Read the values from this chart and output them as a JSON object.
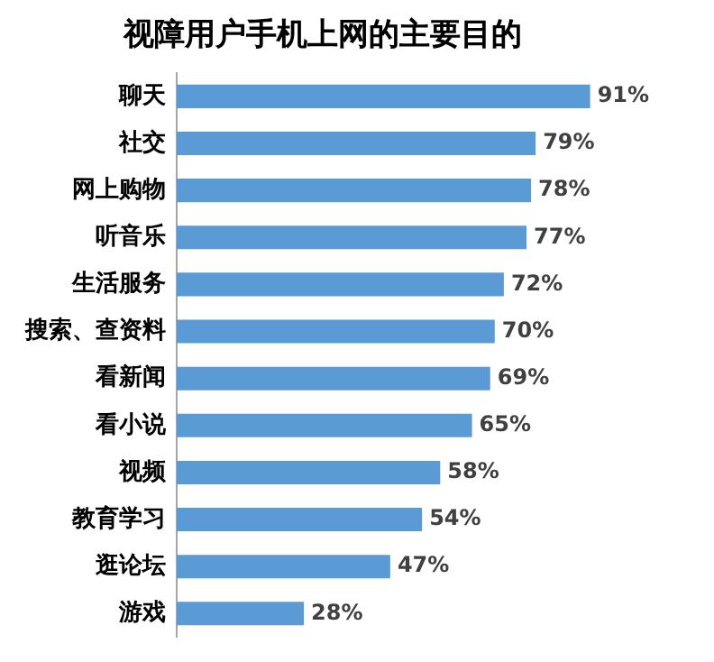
{
  "chart_data": {
    "type": "bar",
    "orientation": "horizontal",
    "title": "视障用户手机上网的主要目的",
    "categories": [
      "聊天",
      "社交",
      "网上购物",
      "听音乐",
      "生活服务",
      "搜索、查资料",
      "看新闻",
      "看小说",
      "视频",
      "教育学习",
      "逛论坛",
      "游戏"
    ],
    "values": [
      91,
      79,
      78,
      77,
      72,
      70,
      69,
      65,
      58,
      54,
      47,
      28
    ],
    "value_labels": [
      "91%",
      "79%",
      "78%",
      "77%",
      "72%",
      "70%",
      "69%",
      "65%",
      "58%",
      "54%",
      "47%",
      "28%"
    ],
    "color": "#5b9bd5",
    "legend": false
  }
}
